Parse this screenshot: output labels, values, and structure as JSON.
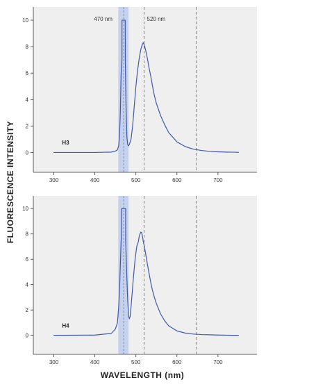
{
  "chart_data": {
    "type": "line",
    "xlabel": "WAVELENGTH (nm)",
    "ylabel": "FLUORESCENCE INTENSITY",
    "xlim": [
      250,
      795
    ],
    "ylim": [
      -1.5,
      11
    ],
    "x_ticks": [
      300,
      400,
      500,
      600,
      700
    ],
    "y_ticks": [
      0,
      2,
      4,
      6,
      8,
      10
    ],
    "grid": false,
    "legend": "none",
    "line_color": "#3f57a8",
    "band_color": "#c6d1ec",
    "excitation_band": [
      457,
      482
    ],
    "excitation_center": 470,
    "marker_lines": [
      {
        "x": 470,
        "label": "470 nm",
        "style": "band-center"
      },
      {
        "x": 520,
        "label": "520 nm",
        "style": "dashed"
      },
      {
        "x": 647,
        "label": "",
        "style": "dashed"
      }
    ],
    "panels": [
      {
        "series_name": "H3",
        "x": [
          300,
          400,
          440,
          450,
          455,
          458,
          460,
          462,
          464,
          466,
          466.1,
          474,
          474.1,
          476,
          478,
          480,
          482,
          484,
          488,
          492,
          496,
          500,
          504,
          508,
          512,
          516,
          518,
          520,
          524,
          528,
          532,
          536,
          540,
          545,
          550,
          560,
          570,
          580,
          600,
          620,
          640,
          660,
          680,
          700,
          720,
          740,
          750
        ],
        "y": [
          0,
          0,
          0.03,
          0.1,
          0.2,
          0.5,
          1.2,
          3,
          6,
          7,
          10,
          10,
          7,
          3.5,
          1.2,
          0.6,
          0.5,
          0.6,
          1,
          2,
          3.5,
          5,
          6.2,
          7.1,
          7.8,
          8.2,
          8.3,
          8.15,
          7.7,
          7.1,
          6.4,
          5.8,
          5.1,
          4.3,
          3.7,
          2.8,
          2.1,
          1.5,
          0.8,
          0.45,
          0.25,
          0.15,
          0.08,
          0.05,
          0.03,
          0.02,
          0.01
        ]
      },
      {
        "series_name": "H4",
        "x": [
          300,
          400,
          440,
          450,
          455,
          458,
          460,
          462,
          464,
          465,
          465.1,
          475,
          475.1,
          476,
          478,
          480,
          482,
          484,
          486,
          488,
          490,
          494,
          498,
          502,
          506,
          508,
          510,
          512,
          514,
          516,
          518,
          520,
          524,
          528,
          532,
          536,
          540,
          545,
          550,
          560,
          570,
          580,
          600,
          620,
          640,
          660,
          680,
          700,
          720,
          740,
          750
        ],
        "y": [
          0,
          0.02,
          0.15,
          0.5,
          1,
          2.2,
          3.5,
          5.5,
          7.5,
          8,
          10,
          10,
          7.5,
          6.5,
          4.5,
          2.8,
          1.6,
          1.3,
          1.5,
          2.2,
          3,
          4.6,
          6,
          7,
          7.4,
          7.8,
          8,
          8.15,
          8.1,
          7.8,
          7.4,
          7.1,
          6.4,
          5.6,
          4.9,
          4.2,
          3.6,
          3,
          2.5,
          1.7,
          1.15,
          0.75,
          0.35,
          0.18,
          0.1,
          0.06,
          0.04,
          0.02,
          0.01,
          0.0,
          0.0
        ]
      }
    ]
  }
}
